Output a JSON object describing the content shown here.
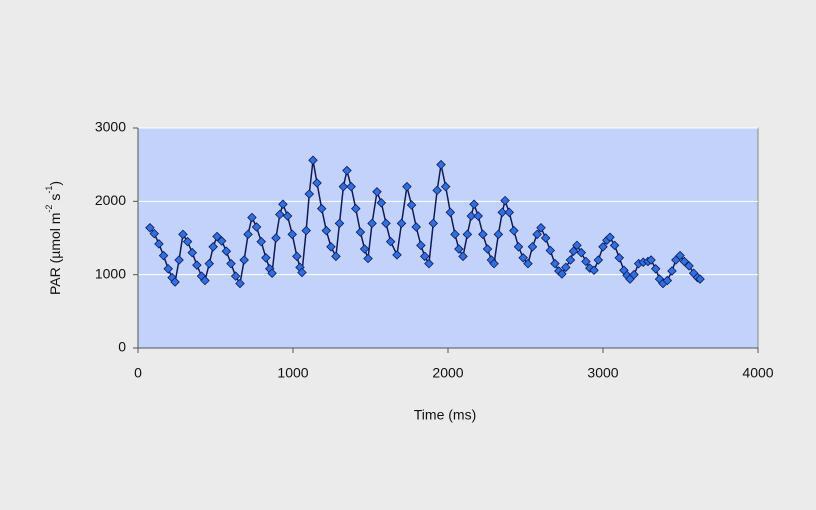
{
  "chart_data": {
    "type": "line",
    "xlabel": "Time (ms)",
    "ylabel_parts": [
      "PAR (µmol m",
      "-2",
      " s",
      "-1",
      ")"
    ],
    "xlim": [
      0,
      4000
    ],
    "xticks": [
      0,
      1000,
      2000,
      3000,
      4000
    ],
    "ylim": [
      0,
      3000
    ],
    "yticks": [
      0,
      1000,
      2000,
      3000
    ],
    "grid": true,
    "series": [
      {
        "color": "#2f6fe0",
        "x": [
          77,
          105,
          135,
          165,
          195,
          220,
          239,
          265,
          290,
          320,
          350,
          380,
          410,
          432,
          460,
          485,
          510,
          540,
          570,
          600,
          630,
          658,
          685,
          710,
          735,
          765,
          795,
          825,
          850,
          865,
          890,
          915,
          935,
          965,
          995,
          1025,
          1045,
          1058,
          1085,
          1105,
          1129,
          1155,
          1185,
          1215,
          1245,
          1277,
          1300,
          1325,
          1348,
          1375,
          1405,
          1435,
          1462,
          1484,
          1510,
          1542,
          1570,
          1600,
          1630,
          1671,
          1700,
          1735,
          1765,
          1795,
          1825,
          1850,
          1877,
          1905,
          1930,
          1955,
          1985,
          2015,
          2045,
          2070,
          2097,
          2125,
          2150,
          2168,
          2195,
          2225,
          2255,
          2280,
          2297,
          2325,
          2350,
          2368,
          2395,
          2425,
          2455,
          2485,
          2516,
          2545,
          2575,
          2600,
          2630,
          2660,
          2690,
          2715,
          2735,
          2760,
          2790,
          2810,
          2832,
          2860,
          2890,
          2915,
          2942,
          2970,
          3000,
          3025,
          3045,
          3075,
          3105,
          3135,
          3155,
          3174,
          3200,
          3230,
          3260,
          3290,
          3310,
          3340,
          3365,
          3387,
          3415,
          3445,
          3470,
          3497,
          3525,
          3555,
          3585,
          3610,
          3626
        ],
        "values": [
          1640,
          1560,
          1420,
          1260,
          1080,
          960,
          900,
          1200,
          1550,
          1450,
          1300,
          1130,
          980,
          920,
          1150,
          1380,
          1520,
          1460,
          1320,
          1150,
          980,
          880,
          1200,
          1550,
          1780,
          1650,
          1450,
          1230,
          1080,
          1020,
          1500,
          1820,
          1960,
          1800,
          1550,
          1250,
          1100,
          1030,
          1600,
          2100,
          2560,
          2250,
          1900,
          1600,
          1380,
          1250,
          1700,
          2200,
          2420,
          2200,
          1900,
          1580,
          1350,
          1220,
          1700,
          2130,
          1980,
          1700,
          1450,
          1270,
          1700,
          2200,
          1950,
          1650,
          1400,
          1250,
          1150,
          1700,
          2150,
          2500,
          2200,
          1850,
          1550,
          1350,
          1250,
          1550,
          1800,
          1960,
          1800,
          1550,
          1350,
          1200,
          1150,
          1550,
          1850,
          2010,
          1850,
          1600,
          1380,
          1230,
          1150,
          1380,
          1550,
          1640,
          1500,
          1330,
          1150,
          1050,
          1010,
          1100,
          1200,
          1320,
          1400,
          1300,
          1180,
          1090,
          1060,
          1200,
          1380,
          1470,
          1510,
          1400,
          1230,
          1060,
          990,
          940,
          1000,
          1150,
          1170,
          1180,
          1200,
          1080,
          940,
          880,
          920,
          1050,
          1200,
          1260,
          1180,
          1120,
          1020,
          960,
          940
        ]
      }
    ]
  }
}
